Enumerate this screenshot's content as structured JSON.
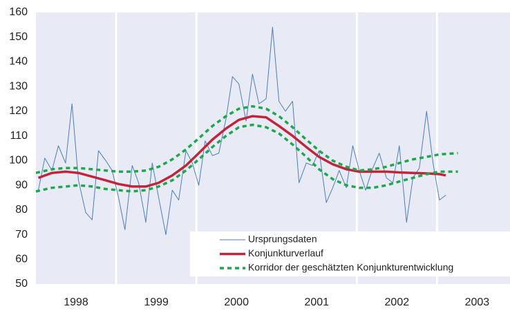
{
  "chart_data": {
    "type": "line",
    "ylim": [
      50,
      160
    ],
    "yticks": [
      50,
      60,
      70,
      80,
      90,
      100,
      110,
      120,
      130,
      140,
      150,
      160
    ],
    "xlim": [
      1998,
      2003.91
    ],
    "xticks": [
      {
        "value": 1998.5,
        "label": "1998"
      },
      {
        "value": 1999.5,
        "label": "1999"
      },
      {
        "value": 2000.5,
        "label": "2000"
      },
      {
        "value": 2001.5,
        "label": "2001"
      },
      {
        "value": 2002.5,
        "label": "2002"
      },
      {
        "value": 2003.5,
        "label": "2003"
      }
    ],
    "xgrid": [
      1999,
      2000,
      2002,
      2003
    ],
    "background": "#e8ebf6",
    "legend": "bottom-right",
    "series": [
      {
        "name": "Ursprungsdaten",
        "color": "#4a7ebb",
        "width": 1,
        "dashed": false,
        "x": [
          1998.03,
          1998.11,
          1998.2,
          1998.28,
          1998.37,
          1998.45,
          1998.53,
          1998.62,
          1998.7,
          1998.78,
          1998.87,
          1998.95,
          1999.03,
          1999.11,
          1999.2,
          1999.28,
          1999.37,
          1999.45,
          1999.53,
          1999.62,
          1999.7,
          1999.78,
          1999.87,
          1999.95,
          2000.03,
          2000.11,
          2000.2,
          2000.28,
          2000.37,
          2000.45,
          2000.53,
          2000.62,
          2000.7,
          2000.78,
          2000.87,
          2000.95,
          2001.03,
          2001.11,
          2001.2,
          2001.28,
          2001.37,
          2001.45,
          2001.53,
          2001.62,
          2001.7,
          2001.78,
          2001.87,
          2001.95,
          2002.03,
          2002.11,
          2002.2,
          2002.28,
          2002.37,
          2002.45,
          2002.53,
          2002.62,
          2002.7,
          2002.78,
          2002.87,
          2002.95,
          2003.03,
          2003.11
        ],
        "values": [
          88,
          101,
          96,
          106,
          99,
          123,
          92,
          79,
          76,
          104,
          100,
          96,
          85,
          72,
          98,
          91,
          75,
          99,
          85,
          70,
          88,
          84,
          104,
          99,
          90,
          108,
          102,
          103,
          117,
          134,
          131,
          116,
          135,
          123,
          125,
          154,
          124,
          120,
          124,
          91,
          99,
          98,
          104,
          83,
          89,
          96,
          89,
          106,
          96,
          88,
          97,
          103,
          93,
          91,
          106,
          75,
          93,
          97,
          120,
          99,
          84,
          86
        ]
      },
      {
        "name": "Konjunkturverlauf",
        "color": "#c0253a",
        "width": 3.5,
        "dashed": false,
        "x": [
          1998.03,
          1998.2,
          1998.37,
          1998.53,
          1998.7,
          1998.87,
          1999.03,
          1999.2,
          1999.37,
          1999.53,
          1999.7,
          1999.87,
          2000.03,
          2000.2,
          2000.37,
          2000.53,
          2000.7,
          2000.87,
          2001.03,
          2001.2,
          2001.37,
          2001.53,
          2001.7,
          2001.87,
          2002.03,
          2002.2,
          2002.37,
          2002.53,
          2002.7,
          2002.87,
          2003.03,
          2003.11
        ],
        "values": [
          93,
          95,
          95.5,
          95,
          93.5,
          92,
          90.5,
          89.5,
          89.5,
          91,
          94,
          98,
          103,
          108.5,
          113,
          116.5,
          118,
          117.5,
          114,
          110,
          105.5,
          101.5,
          98.5,
          96.5,
          95.5,
          95.5,
          95.5,
          95.2,
          95,
          94.8,
          94.5,
          94
        ]
      },
      {
        "name": "Korridor der geschätzten Konjunkturentwicklung",
        "color": "#1ca84b",
        "width": 3.5,
        "dashed": true,
        "x": [
          1998,
          1998.2,
          1998.37,
          1998.53,
          1998.7,
          1998.87,
          1999.03,
          1999.2,
          1999.37,
          1999.53,
          1999.7,
          1999.87,
          2000.03,
          2000.2,
          2000.37,
          2000.53,
          2000.7,
          2000.87,
          2001.03,
          2001.2,
          2001.37,
          2001.53,
          2001.7,
          2001.87,
          2002.03,
          2002.2,
          2002.37,
          2002.53,
          2002.7,
          2002.87,
          2003.03,
          2003.26
        ],
        "values": [
          95,
          96.5,
          97,
          97,
          96.5,
          96,
          95.5,
          95.5,
          96,
          97.5,
          100.5,
          104.5,
          109,
          114,
          118,
          121,
          122,
          121,
          118,
          113.5,
          108.5,
          104,
          100,
          97.5,
          96,
          96.5,
          97.5,
          99,
          100.5,
          101.5,
          102.5,
          103
        ]
      },
      {
        "color": "#1ca84b",
        "width": 3.5,
        "dashed": true,
        "x": [
          1998,
          1998.2,
          1998.37,
          1998.53,
          1998.7,
          1998.87,
          1999.03,
          1999.2,
          1999.37,
          1999.53,
          1999.7,
          1999.87,
          2000.03,
          2000.2,
          2000.37,
          2000.53,
          2000.7,
          2000.87,
          2001.03,
          2001.2,
          2001.37,
          2001.53,
          2001.7,
          2001.87,
          2002.03,
          2002.2,
          2002.37,
          2002.53,
          2002.7,
          2002.87,
          2003.03,
          2003.26
        ],
        "values": [
          87.5,
          89,
          89.5,
          90,
          89.5,
          88.5,
          88,
          87.5,
          88,
          89.5,
          92,
          96,
          100.5,
          105.5,
          110,
          113.5,
          114.5,
          113.5,
          111,
          106.5,
          101.5,
          96.5,
          92.5,
          90,
          89,
          89,
          90,
          91.5,
          93,
          94.5,
          95.5,
          95.5
        ]
      }
    ]
  }
}
